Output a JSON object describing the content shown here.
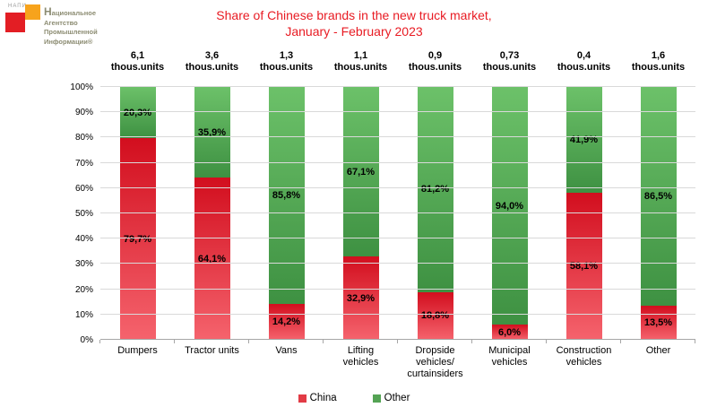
{
  "logo": {
    "acronym": "НАПИ",
    "lines": [
      "Национальное",
      "Агентство",
      "Промышленной",
      "Информации®"
    ],
    "red_color": "#e31e24",
    "orange_color": "#f7a31c",
    "text_color": "#8c8c72"
  },
  "title": {
    "line1": "Share of Chinese brands in the new truck market,",
    "line2": "January - February 2023",
    "color": "#e81b23"
  },
  "chart_data": {
    "type": "bar",
    "stacked": true,
    "grid": true,
    "legend_position": "bottom",
    "ylim": [
      0,
      100
    ],
    "y_ticks": [
      "100%",
      "90%",
      "80%",
      "70%",
      "60%",
      "50%",
      "40%",
      "30%",
      "20%",
      "10%",
      "0%"
    ],
    "unit_suffix": "thous.units",
    "categories": [
      "Dumpers",
      "Tractor units",
      "Vans",
      "Lifting vehicles",
      "Dropside vehicles/ curtainsiders",
      "Municipal vehicles",
      "Construction vehicles",
      "Other"
    ],
    "totals_thous_units": [
      6.1,
      3.6,
      1.3,
      1.1,
      0.9,
      0.73,
      0.4,
      1.6
    ],
    "totals_display": [
      "6,1",
      "3,6",
      "1,3",
      "1,1",
      "0,9",
      "0,73",
      "0,4",
      "1,6"
    ],
    "series": [
      {
        "name": "China",
        "color_top": "#d20e1e",
        "color_bottom": "#f5636d",
        "values": [
          79.7,
          64.1,
          14.2,
          32.9,
          18.8,
          6.0,
          58.1,
          13.5
        ],
        "labels": [
          "79,7%",
          "64,1%",
          "14,2%",
          "32,9%",
          "18,8%",
          "6,0%",
          "58,1%",
          "13,5%"
        ]
      },
      {
        "name": "Other",
        "color_top": "#6cc169",
        "color_bottom": "#3e9142",
        "values": [
          20.3,
          35.9,
          85.8,
          67.1,
          81.2,
          94.0,
          41.9,
          86.5
        ],
        "labels": [
          "20,3%",
          "35,9%",
          "85,8%",
          "67,1%",
          "81,2%",
          "94,0%",
          "41,9%",
          "86,5%"
        ]
      }
    ]
  },
  "legend": [
    {
      "label": "China",
      "color": "#e23b45"
    },
    {
      "label": "Other",
      "color": "#54a354"
    }
  ]
}
